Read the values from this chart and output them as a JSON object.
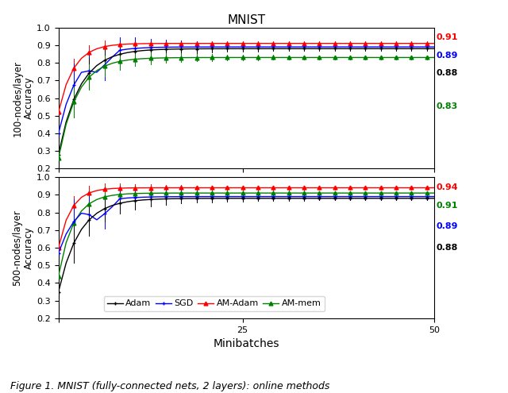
{
  "title": "MNIST",
  "xlabel": "Minibatches",
  "ylabel_top": "100-nodes/layer\nAccuracy",
  "ylabel_bottom": "500-nodes/layer\nAccuracy",
  "figcaption": "Figure 1. MNIST (fully-connected nets, 2 layers): online methods",
  "x_range": [
    1,
    50
  ],
  "y_range": [
    0.2,
    1.0
  ],
  "colors": {
    "Adam": "#000000",
    "SGD": "#0000ff",
    "AM-Adam": "#ff0000",
    "AM-mem": "#008000"
  },
  "top_annots": [
    [
      "0.91",
      "#ff0000"
    ],
    [
      "0.89",
      "#0000ff"
    ],
    [
      "0.88",
      "#000000"
    ],
    [
      "0.83",
      "#008000"
    ]
  ],
  "bottom_annots": [
    [
      "0.94",
      "#ff0000"
    ],
    [
      "0.91",
      "#008000"
    ],
    [
      "0.89",
      "#0000ff"
    ],
    [
      "0.88",
      "#000000"
    ]
  ]
}
